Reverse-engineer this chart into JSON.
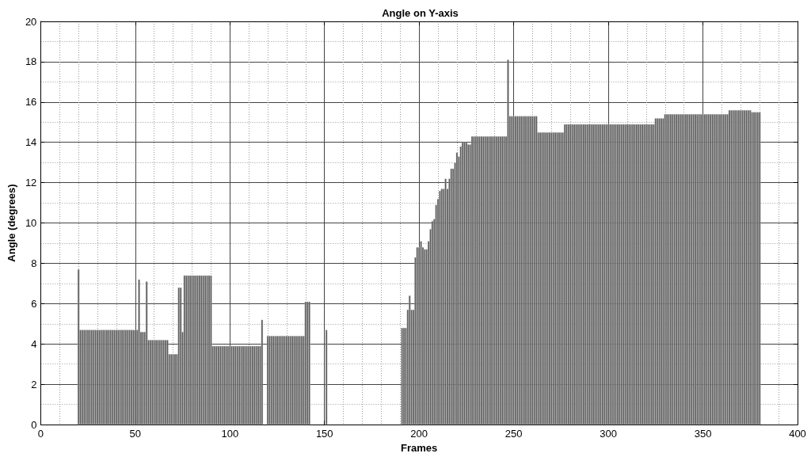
{
  "chart_data": {
    "type": "bar",
    "title": "Angle on Y-axis",
    "xlabel": "Frames",
    "ylabel": "Angle (degrees)",
    "color": "#555555",
    "grid": true,
    "xlim": [
      0,
      400
    ],
    "xticks": [
      0,
      50,
      100,
      150,
      200,
      250,
      300,
      350,
      400
    ],
    "ylim": [
      0,
      20
    ],
    "yticks": [
      0,
      2,
      4,
      6,
      8,
      10,
      12,
      14,
      16,
      18,
      20
    ],
    "x": [
      20,
      21,
      22,
      23,
      24,
      25,
      26,
      27,
      28,
      29,
      30,
      31,
      32,
      33,
      34,
      35,
      36,
      37,
      38,
      39,
      40,
      41,
      42,
      43,
      44,
      45,
      46,
      47,
      48,
      49,
      50,
      51,
      52,
      53,
      54,
      55,
      56,
      57,
      58,
      59,
      60,
      61,
      62,
      63,
      64,
      65,
      66,
      67,
      68,
      69,
      70,
      71,
      72,
      73,
      74,
      75,
      76,
      77,
      78,
      79,
      80,
      81,
      82,
      83,
      84,
      85,
      86,
      87,
      88,
      89,
      90,
      91,
      92,
      93,
      94,
      95,
      96,
      97,
      98,
      99,
      100,
      101,
      102,
      103,
      104,
      105,
      106,
      107,
      108,
      109,
      110,
      111,
      112,
      113,
      114,
      115,
      116,
      117,
      120,
      121,
      122,
      123,
      124,
      125,
      126,
      127,
      128,
      129,
      130,
      131,
      132,
      133,
      134,
      135,
      136,
      137,
      138,
      139,
      140,
      141,
      142,
      151,
      191,
      192,
      193,
      194,
      195,
      196,
      197,
      198,
      199,
      200,
      201,
      202,
      203,
      204,
      205,
      206,
      207,
      208,
      209,
      210,
      211,
      212,
      213,
      214,
      215,
      216,
      217,
      218,
      219,
      220,
      221,
      222,
      223,
      224,
      225,
      226,
      227,
      228,
      229,
      230,
      231,
      232,
      233,
      234,
      235,
      236,
      237,
      238,
      239,
      240,
      241,
      242,
      243,
      244,
      245,
      246,
      247,
      248,
      249,
      250,
      251,
      252,
      253,
      254,
      255,
      256,
      257,
      258,
      259,
      260,
      261,
      262,
      263,
      264,
      265,
      266,
      267,
      268,
      269,
      270,
      271,
      272,
      273,
      274,
      275,
      276,
      277,
      278,
      279,
      280,
      281,
      282,
      283,
      284,
      285,
      286,
      287,
      288,
      289,
      290,
      291,
      292,
      293,
      294,
      295,
      296,
      297,
      298,
      299,
      300,
      301,
      302,
      303,
      304,
      305,
      306,
      307,
      308,
      309,
      310,
      311,
      312,
      313,
      314,
      315,
      316,
      317,
      318,
      319,
      320,
      321,
      322,
      323,
      324,
      325,
      326,
      327,
      328,
      329,
      330,
      331,
      332,
      333,
      334,
      335,
      336,
      337,
      338,
      339,
      340,
      341,
      342,
      343,
      344,
      345,
      346,
      347,
      348,
      349,
      350,
      351,
      352,
      353,
      354,
      355,
      356,
      357,
      358,
      359,
      360,
      361,
      362,
      363,
      364,
      365,
      366,
      367,
      368,
      369,
      370,
      371,
      372,
      373,
      374,
      375,
      376,
      377,
      378,
      379,
      380
    ],
    "values": [
      7.7,
      4.7,
      4.7,
      4.7,
      4.7,
      4.7,
      4.7,
      4.7,
      4.7,
      4.7,
      4.7,
      4.7,
      4.7,
      4.7,
      4.7,
      4.7,
      4.7,
      4.7,
      4.7,
      4.7,
      4.7,
      4.7,
      4.7,
      4.7,
      4.7,
      4.7,
      4.7,
      4.7,
      4.7,
      4.7,
      4.7,
      4.7,
      7.2,
      4.6,
      4.6,
      4.6,
      7.1,
      4.2,
      4.2,
      4.2,
      4.2,
      4.2,
      4.2,
      4.2,
      4.2,
      4.2,
      4.2,
      4.2,
      3.5,
      3.5,
      3.5,
      3.5,
      3.5,
      6.8,
      6.8,
      4.6,
      7.4,
      7.4,
      7.4,
      7.4,
      7.4,
      7.4,
      7.4,
      7.4,
      7.4,
      7.4,
      7.4,
      7.4,
      7.4,
      7.4,
      7.4,
      3.9,
      3.9,
      3.9,
      3.9,
      3.9,
      3.9,
      3.9,
      3.9,
      3.9,
      3.9,
      3.9,
      3.9,
      3.9,
      3.9,
      3.9,
      3.9,
      3.9,
      3.9,
      3.9,
      3.9,
      3.9,
      3.9,
      3.9,
      3.9,
      3.9,
      3.9,
      5.2,
      4.4,
      4.4,
      4.4,
      4.4,
      4.4,
      4.4,
      4.4,
      4.4,
      4.4,
      4.4,
      4.4,
      4.4,
      4.4,
      4.4,
      4.4,
      4.4,
      4.4,
      4.4,
      4.4,
      4.4,
      6.1,
      6.1,
      6.1,
      4.7,
      4.8,
      4.8,
      4.8,
      5.7,
      6.4,
      5.7,
      5.7,
      8.3,
      8.8,
      8.8,
      9.1,
      8.8,
      8.7,
      8.7,
      9.1,
      9.7,
      10.1,
      10.2,
      10.9,
      11.2,
      11.6,
      11.7,
      11.7,
      12.2,
      11.7,
      12.2,
      12.7,
      12.7,
      13.0,
      13.5,
      13.3,
      13.8,
      14.0,
      14.0,
      14.0,
      13.9,
      13.9,
      14.3,
      14.3,
      14.3,
      14.3,
      14.3,
      14.3,
      14.3,
      14.3,
      14.3,
      14.3,
      14.3,
      14.3,
      14.3,
      14.3,
      14.3,
      14.3,
      14.3,
      14.3,
      14.3,
      18.1,
      15.3,
      15.3,
      15.3,
      15.3,
      15.3,
      15.3,
      15.3,
      15.3,
      15.3,
      15.3,
      15.3,
      15.3,
      15.3,
      15.3,
      15.3,
      14.5,
      14.5,
      14.5,
      14.5,
      14.5,
      14.5,
      14.5,
      14.5,
      14.5,
      14.5,
      14.5,
      14.5,
      14.5,
      14.5,
      14.9,
      14.9,
      14.9,
      14.9,
      14.9,
      14.9,
      14.9,
      14.9,
      14.9,
      14.9,
      14.9,
      14.9,
      14.9,
      14.9,
      14.9,
      14.9,
      14.9,
      14.9,
      14.9,
      14.9,
      14.9,
      14.9,
      14.9,
      14.9,
      14.9,
      14.9,
      14.9,
      14.9,
      14.9,
      14.9,
      14.9,
      14.9,
      14.9,
      14.9,
      14.9,
      14.9,
      14.9,
      14.9,
      14.9,
      14.9,
      14.9,
      14.9,
      14.9,
      14.9,
      14.9,
      14.9,
      14.9,
      14.9,
      15.2,
      15.2,
      15.2,
      15.2,
      15.2,
      15.4,
      15.4,
      15.4,
      15.4,
      15.4,
      15.4,
      15.4,
      15.4,
      15.4,
      15.4,
      15.4,
      15.4,
      15.4,
      15.4,
      15.4,
      15.4,
      15.4,
      15.4,
      15.4,
      15.4,
      15.4,
      15.4,
      15.4,
      15.4,
      15.4,
      15.4,
      15.4,
      15.4,
      15.4,
      15.4,
      15.4,
      15.4,
      15.4,
      15.4,
      15.6,
      15.6,
      15.6,
      15.6,
      15.6,
      15.6,
      15.6,
      15.6,
      15.6,
      15.6,
      15.6,
      15.6,
      15.5,
      15.5,
      15.5,
      15.5,
      15.5
    ]
  }
}
